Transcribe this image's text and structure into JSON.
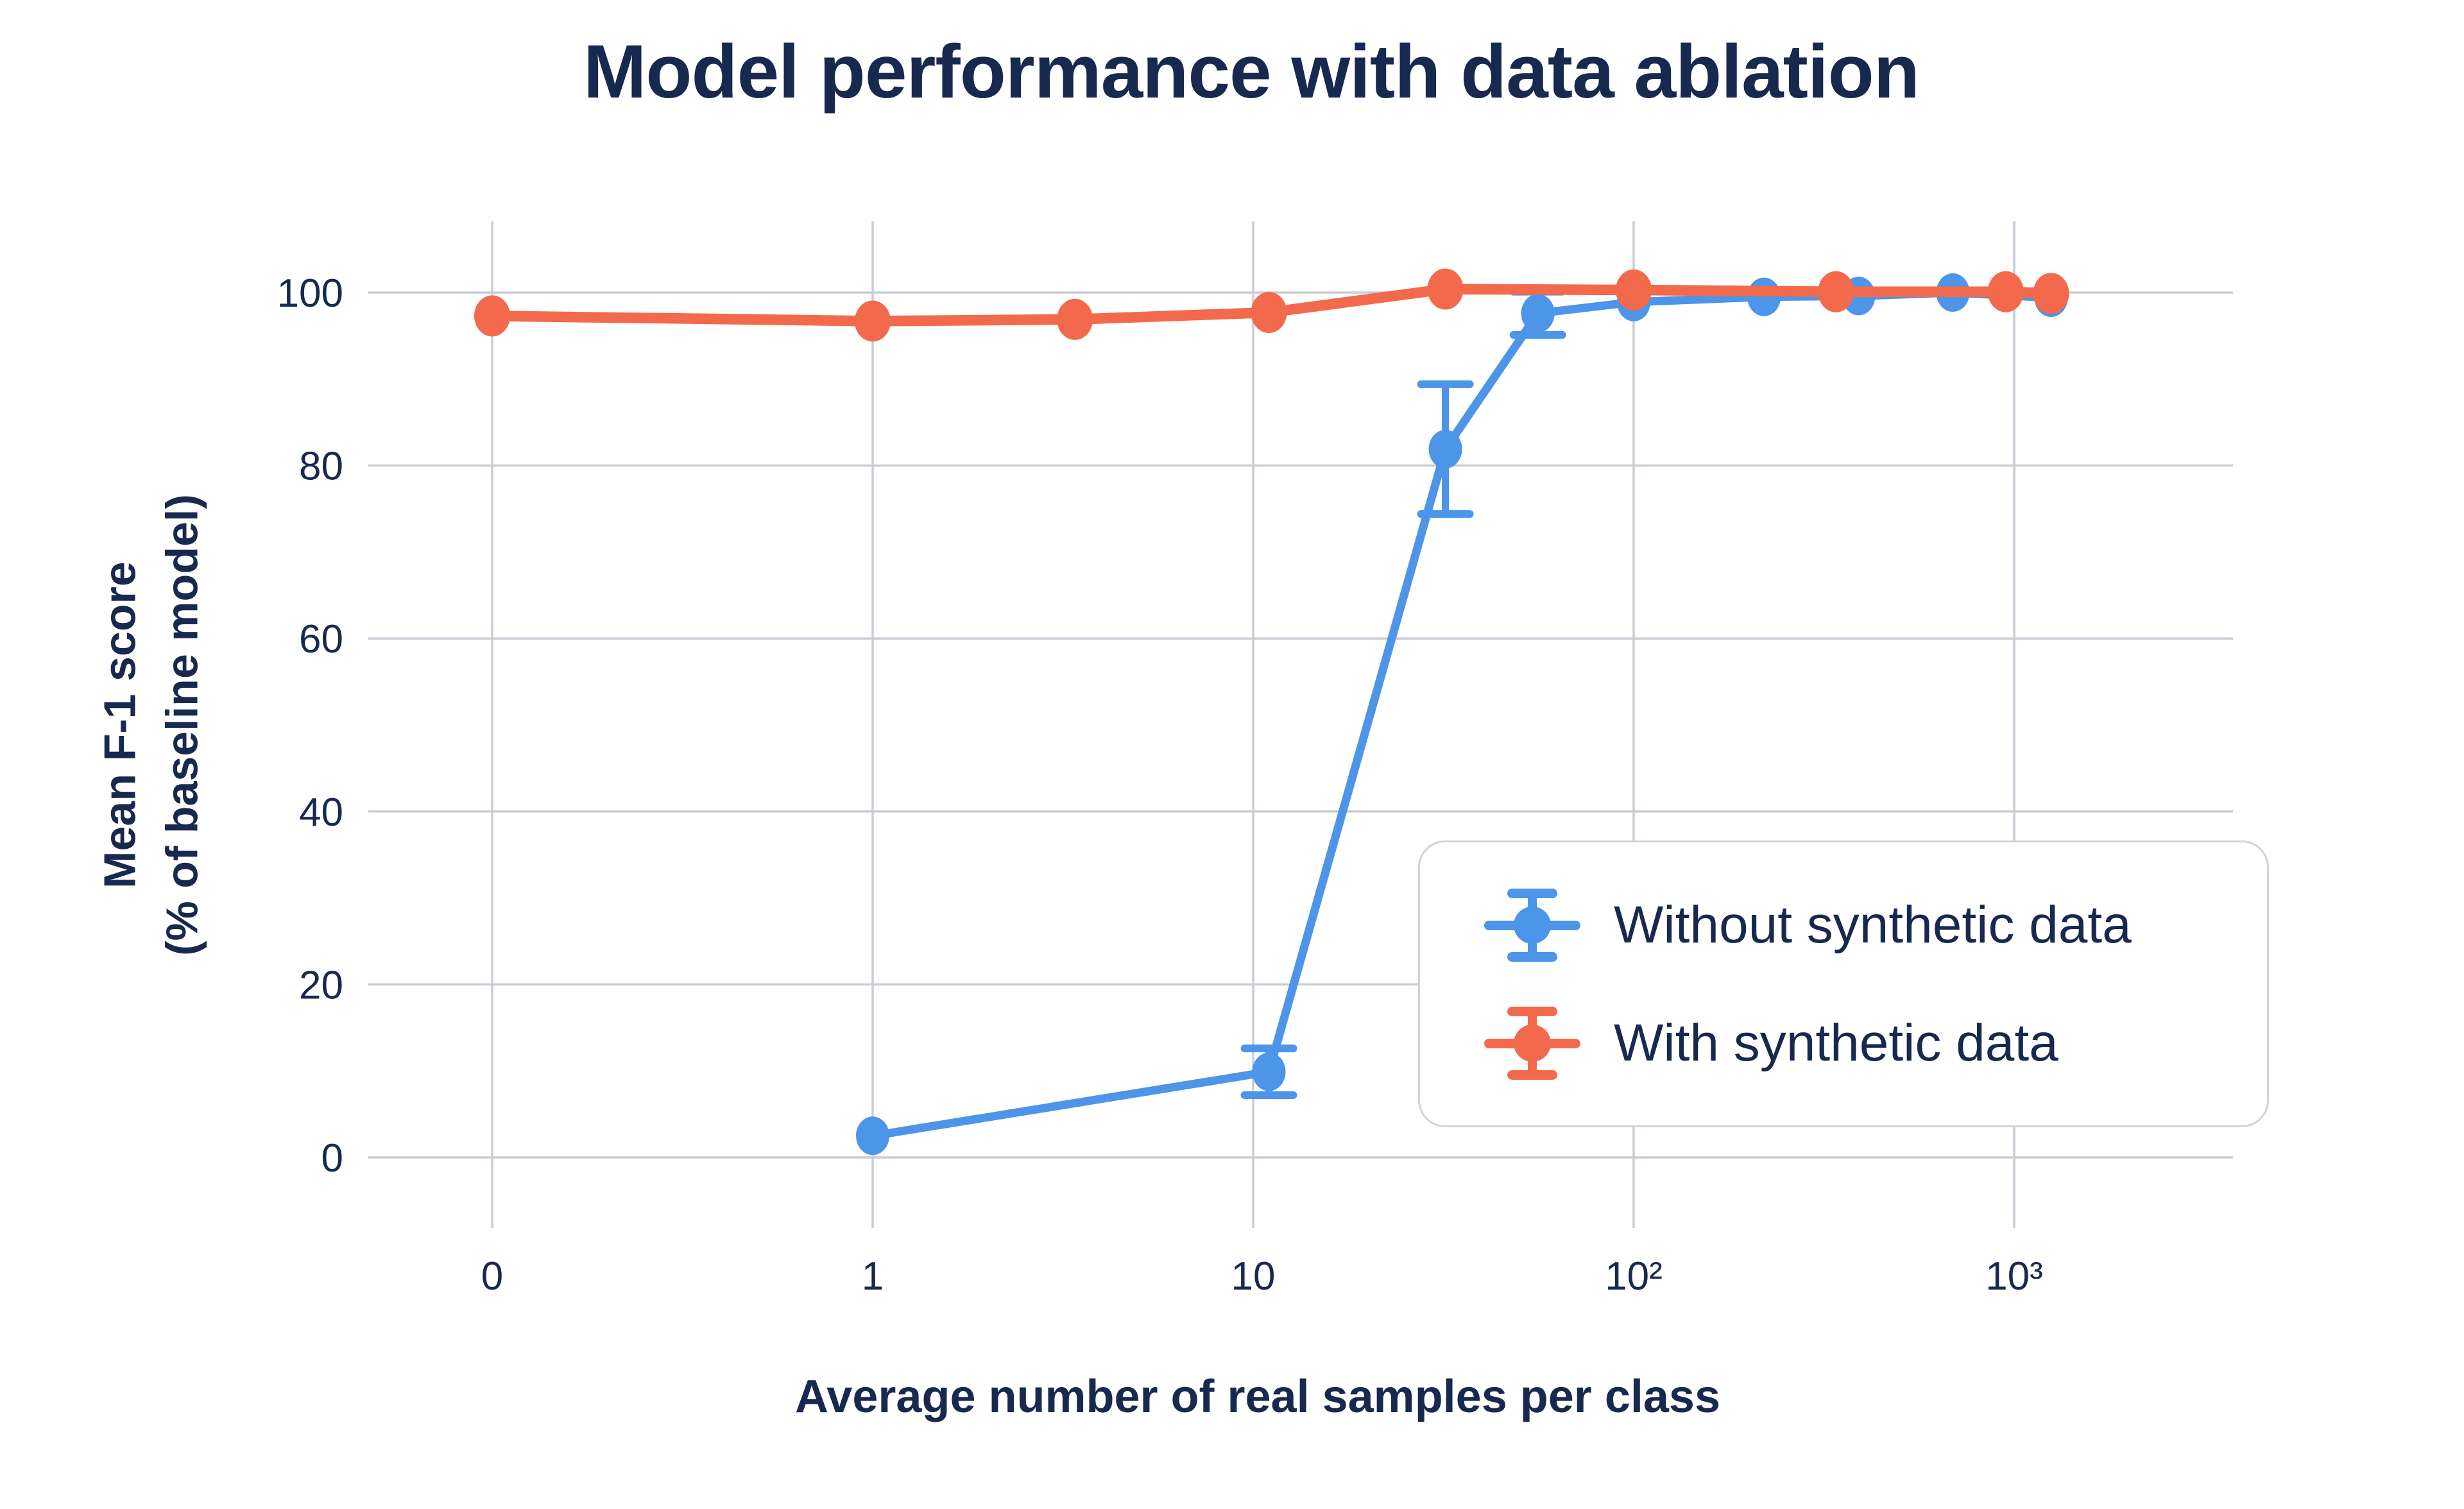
{
  "theme": {
    "background": "#FFFFFF",
    "text_color": "#17294E",
    "grid_color": "#C8CDD5",
    "legend_border_color": "#CFD4DC",
    "blue": "#4C95E8",
    "orange": "#F26A4B"
  },
  "chart": {
    "title": "Model performance with data ablation",
    "x_axis": {
      "label": "Average number of real samples per class",
      "scale": "log (0 plotted one decade left of 1)",
      "ticks": [
        {
          "value": 0,
          "label": "0"
        },
        {
          "value": 1,
          "label": "1"
        },
        {
          "value": 10,
          "label": "10"
        },
        {
          "value": 100,
          "label": "10²"
        },
        {
          "value": 1000,
          "label": "10³"
        }
      ]
    },
    "y_axis": {
      "label_line1": "Mean F-1 score",
      "label_line2": "(% of baseline model)",
      "ticks": [
        "0",
        "20",
        "40",
        "60",
        "80",
        "100"
      ]
    },
    "legend": {
      "items": [
        {
          "label": "Without synthetic data",
          "color": "#4C95E8"
        },
        {
          "label": "With synthetic data",
          "color": "#F26A4B"
        }
      ]
    }
  },
  "chart_data": {
    "type": "line",
    "title": "Model performance with data ablation",
    "xlabel": "Average number of real samples per class",
    "ylabel": "Mean F-1 score (% of baseline model)",
    "x_scale": "log",
    "x_ticks": [
      0,
      1,
      10,
      100,
      1000
    ],
    "y_ticks": [
      0,
      20,
      40,
      60,
      80,
      100
    ],
    "ylim": [
      -8,
      108
    ],
    "grid": true,
    "legend_position": "lower right",
    "series": [
      {
        "name": "Without synthetic data",
        "color": "#4C95E8",
        "x": [
          1,
          11,
          32,
          56,
          100,
          220,
          390,
          690,
          1250
        ],
        "y": [
          2.5,
          9.9,
          81.9,
          97.6,
          98.9,
          99.5,
          99.6,
          100.0,
          99.4
        ],
        "yerr": [
          1.2,
          2.7,
          7.5,
          2.5,
          1.2,
          1.0,
          1.0,
          1.0,
          1.0
        ]
      },
      {
        "name": "With synthetic data",
        "color": "#F26A4B",
        "x": [
          0,
          1,
          3.4,
          11,
          32,
          100,
          340,
          950,
          1250
        ],
        "y": [
          97.3,
          96.7,
          96.9,
          97.7,
          100.4,
          100.3,
          100.1,
          100.1,
          99.9
        ],
        "yerr": [
          1.2,
          1.2,
          1.2,
          1.2,
          1.2,
          1.2,
          1.2,
          1.2,
          1.2
        ]
      }
    ]
  }
}
